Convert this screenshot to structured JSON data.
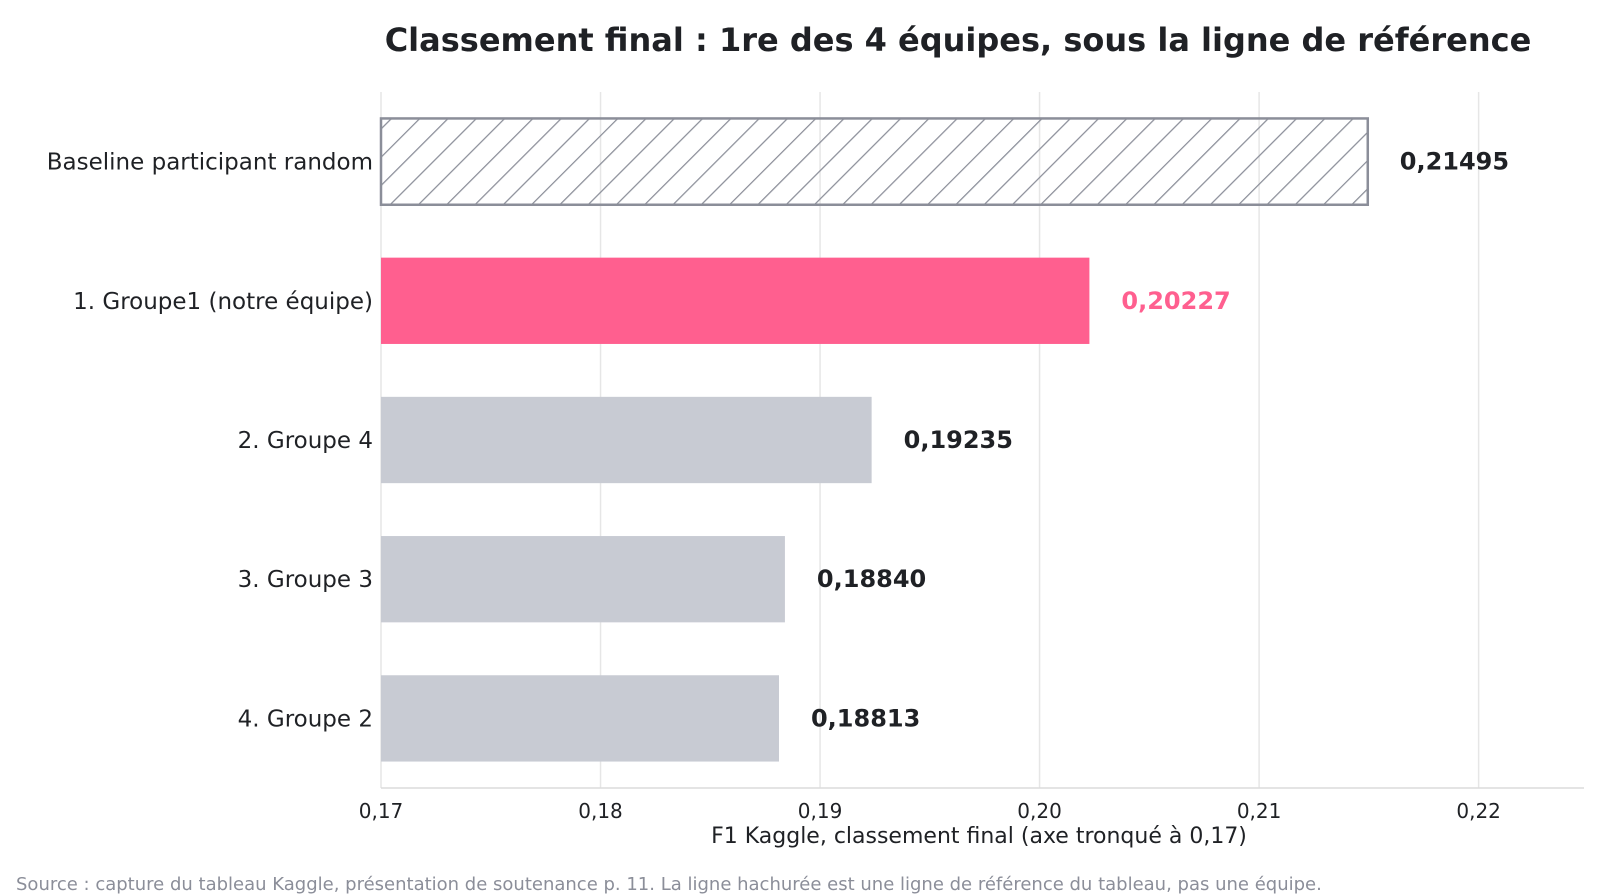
{
  "chart_data": {
    "type": "bar",
    "orientation": "horizontal",
    "title": "Classement final : 1re des 4 équipes, sous la ligne de référence",
    "xlabel": "F1 Kaggle, classement final (axe tronqué à 0,17)",
    "ylabel": "",
    "xlim": [
      0.17,
      0.2248
    ],
    "xticks": [
      0.17,
      0.18,
      0.19,
      0.2,
      0.21,
      0.22
    ],
    "xtick_labels": [
      "0,17",
      "0,18",
      "0,19",
      "0,20",
      "0,21",
      "0,22"
    ],
    "grid": "vertical",
    "categories": [
      "Baseline participant random",
      "1. Groupe1 (notre équipe)",
      "2. Groupe 4",
      "3. Groupe 3",
      "4. Groupe 2"
    ],
    "values": [
      0.21495,
      0.20227,
      0.19235,
      0.1884,
      0.18813
    ],
    "value_labels": [
      "0,21495",
      "0,20227",
      "0,19235",
      "0,18840",
      "0,18813"
    ],
    "bar_styles": [
      "hatched",
      "highlight",
      "normal",
      "normal",
      "normal"
    ],
    "colors": {
      "highlight": "#ff5f8f",
      "normal": "#c8cbd3",
      "baseline_stroke": "#8b8e99",
      "text": "#1f2125",
      "grid": "#e6e6e6",
      "source": "#8b8e99"
    }
  },
  "source_note": "Source : capture du tableau Kaggle, présentation de soutenance p. 11. La ligne hachurée est une ligne de référence du tableau, pas une équipe."
}
